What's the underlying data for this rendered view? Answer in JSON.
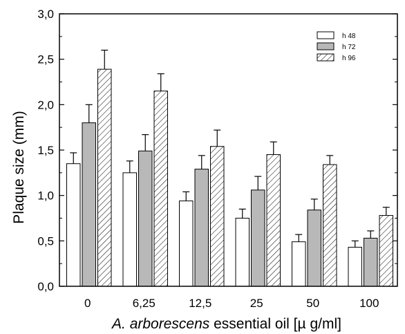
{
  "chart_data": {
    "type": "bar",
    "title": "",
    "xlabel_italic": "A. arborescens",
    "xlabel_rest": " essential oil [µ g/ml]",
    "ylabel": "Plaque size (mm)",
    "categories": [
      "0",
      "6,25",
      "12,5",
      "25",
      "50",
      "100"
    ],
    "ylim": [
      0,
      3.0
    ],
    "y_ticks": [
      "0,0",
      "0,5",
      "1,0",
      "1,5",
      "2,0",
      "2,5",
      "3,0"
    ],
    "grid": false,
    "legend_position": "top-right",
    "series": [
      {
        "name": "h 48",
        "fill": "#ffffff",
        "pattern": "none",
        "values": [
          1.35,
          1.25,
          0.94,
          0.75,
          0.49,
          0.43
        ],
        "errors": [
          0.12,
          0.13,
          0.1,
          0.1,
          0.08,
          0.07
        ]
      },
      {
        "name": "h 72",
        "fill": "#b8b8b8",
        "pattern": "none",
        "values": [
          1.8,
          1.49,
          1.29,
          1.06,
          0.84,
          0.53
        ],
        "errors": [
          0.2,
          0.18,
          0.15,
          0.15,
          0.12,
          0.08
        ]
      },
      {
        "name": "h 96",
        "fill": "#ffffff",
        "pattern": "diagonal-hatch",
        "values": [
          2.39,
          2.15,
          1.54,
          1.45,
          1.34,
          0.78
        ],
        "errors": [
          0.21,
          0.19,
          0.18,
          0.14,
          0.1,
          0.09
        ]
      }
    ]
  }
}
